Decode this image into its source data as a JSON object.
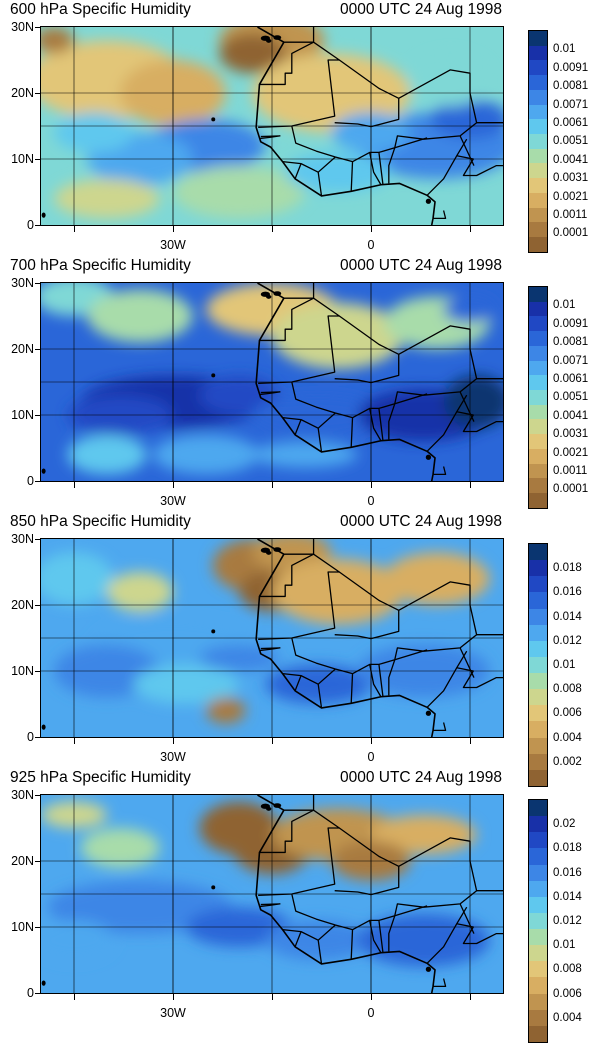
{
  "panels": [
    {
      "title": "600 hPa Specific Humidity",
      "time": "0000 UTC 24 Aug 1998",
      "ylabels": [
        "30N",
        "20N",
        "10N",
        "0"
      ],
      "xlabels": [
        "30W",
        "0"
      ],
      "colorbar_labels": [
        "0.01",
        "0.0091",
        "0.0081",
        "0.0071",
        "0.0061",
        "0.0051",
        "0.0041",
        "0.0031",
        "0.0021",
        "0.0011",
        "0.0001"
      ],
      "colorbar_colors": [
        "#0a3570",
        "#1830a8",
        "#2048c4",
        "#2a66d8",
        "#3d86e6",
        "#4ea8ef",
        "#5fc8ee",
        "#7fd8d6",
        "#a8dcaa",
        "#cdd68e",
        "#e2c678",
        "#d8ae62",
        "#c09450",
        "#a87a40",
        "#8f6332"
      ]
    },
    {
      "title": "700 hPa Specific Humidity",
      "time": "0000 UTC 24 Aug 1998",
      "ylabels": [
        "30N",
        "20N",
        "10N",
        "0"
      ],
      "xlabels": [
        "30W",
        "0"
      ],
      "colorbar_labels": [
        "0.01",
        "0.0091",
        "0.0081",
        "0.0071",
        "0.0061",
        "0.0051",
        "0.0041",
        "0.0031",
        "0.0021",
        "0.0011",
        "0.0001"
      ],
      "colorbar_colors": [
        "#0a3570",
        "#1830a8",
        "#2048c4",
        "#2a66d8",
        "#3d86e6",
        "#4ea8ef",
        "#5fc8ee",
        "#7fd8d6",
        "#a8dcaa",
        "#cdd68e",
        "#e2c678",
        "#d8ae62",
        "#c09450",
        "#a87a40",
        "#8f6332"
      ]
    },
    {
      "title": "850 hPa Specific Humidity",
      "time": "0000 UTC 24 Aug 1998",
      "ylabels": [
        "30N",
        "20N",
        "10N",
        "0"
      ],
      "xlabels": [
        "30W",
        "0"
      ],
      "colorbar_labels": [
        "0.018",
        "0.016",
        "0.014",
        "0.012",
        "0.01",
        "0.008",
        "0.006",
        "0.004",
        "0.002"
      ],
      "colorbar_colors": [
        "#0a3570",
        "#1830a8",
        "#2048c4",
        "#2a66d8",
        "#3d86e6",
        "#4ea8ef",
        "#5fc8ee",
        "#7fd8d6",
        "#a8dcaa",
        "#cdd68e",
        "#e2c678",
        "#d8ae62",
        "#c09450",
        "#a87a40",
        "#8f6332"
      ]
    },
    {
      "title": "925 hPa Specific Humidity",
      "time": "0000 UTC 24 Aug 1998",
      "ylabels": [
        "30N",
        "20N",
        "10N",
        "0"
      ],
      "xlabels": [
        "30W",
        "0"
      ],
      "colorbar_labels": [
        "0.02",
        "0.018",
        "0.016",
        "0.014",
        "0.012",
        "0.01",
        "0.008",
        "0.006",
        "0.004"
      ],
      "colorbar_colors": [
        "#0a3570",
        "#1830a8",
        "#2048c4",
        "#2a66d8",
        "#3d86e6",
        "#4ea8ef",
        "#5fc8ee",
        "#7fd8d6",
        "#a8dcaa",
        "#cdd68e",
        "#e2c678",
        "#d8ae62",
        "#c09450",
        "#a87a40",
        "#8f6332"
      ]
    }
  ]
}
